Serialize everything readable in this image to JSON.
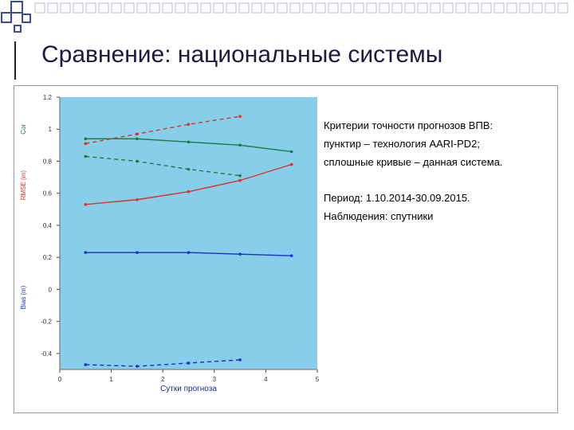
{
  "slide": {
    "title": "Сравнение: национальные системы"
  },
  "notes": {
    "line1": "Критерии точности прогнозов ВПВ:",
    "line2": "пунктир – технология AARI-PD2;",
    "line3": "сплошные кривые – данная система.",
    "line4": "Период: 1.10.2014-30.09.2015.",
    "line5": "Наблюдения: спутники"
  },
  "colors": {
    "plot_bg": "#87ceeb",
    "cor": "#1a7a3a",
    "rmse": "#e03020",
    "bias": "#1a2fc8",
    "deco_blue": "#3a4aa0",
    "deco_gray": "#b8b8c8"
  },
  "chart_data": {
    "type": "line",
    "xlabel": "Сутки прогноза",
    "ylabels": [
      "Cor",
      "RMSE (m)",
      "Bias (m)"
    ],
    "xlim": [
      0,
      5
    ],
    "ylim": [
      -0.5,
      1.2
    ],
    "x_ticks": [
      "0",
      "1",
      "2",
      "3",
      "4",
      "5"
    ],
    "y_ticks": [
      "1.2",
      "1",
      "0.8",
      "0.6",
      "0.4",
      "0.2",
      "0",
      "-0.2",
      "-0.4"
    ],
    "series": [
      {
        "key": "cor",
        "style": "solid",
        "x": [
          0.5,
          1.5,
          2.5,
          3.5,
          4.5
        ],
        "y": [
          0.94,
          0.94,
          0.92,
          0.9,
          0.86
        ]
      },
      {
        "key": "cor",
        "style": "dashed",
        "x": [
          0.5,
          1.5,
          2.5,
          3.5
        ],
        "y": [
          0.83,
          0.8,
          0.75,
          0.71
        ]
      },
      {
        "key": "rmse",
        "style": "solid",
        "x": [
          0.5,
          1.5,
          2.5,
          3.5,
          4.5
        ],
        "y": [
          0.53,
          0.56,
          0.61,
          0.68,
          0.78
        ]
      },
      {
        "key": "rmse",
        "style": "dashed",
        "x": [
          0.5,
          1.5,
          2.5,
          3.5
        ],
        "y": [
          0.91,
          0.97,
          1.03,
          1.08
        ]
      },
      {
        "key": "bias",
        "style": "solid",
        "x": [
          0.5,
          1.5,
          2.5,
          3.5,
          4.5
        ],
        "y": [
          0.23,
          0.23,
          0.23,
          0.22,
          0.21
        ]
      },
      {
        "key": "bias",
        "style": "dashed",
        "x": [
          0.5,
          1.5,
          2.5,
          3.5
        ],
        "y": [
          -0.47,
          -0.48,
          -0.46,
          -0.44
        ]
      }
    ]
  }
}
